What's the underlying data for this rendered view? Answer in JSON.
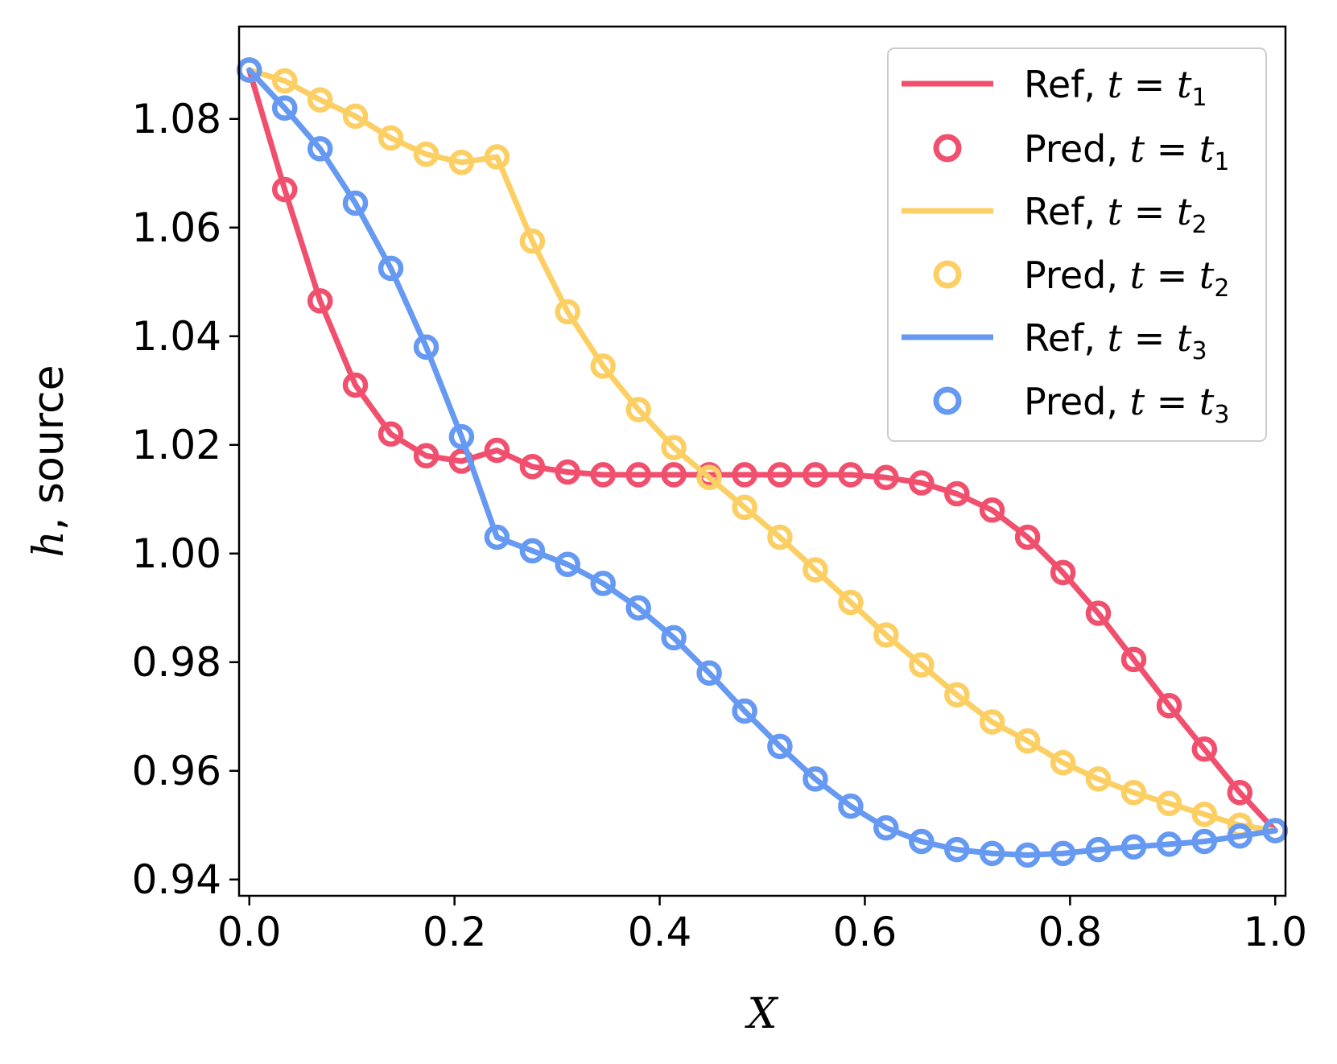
{
  "chart_data": {
    "type": "line",
    "title": "",
    "xlabel": "X",
    "ylabel_var": "h",
    "ylabel_rest": ", source",
    "xlim": [
      -0.01,
      1.01
    ],
    "ylim": [
      0.937,
      1.097
    ],
    "xticks": [
      0.0,
      0.2,
      0.4,
      0.6,
      0.8,
      1.0
    ],
    "xtick_labels": [
      "0.0",
      "0.2",
      "0.4",
      "0.6",
      "0.8",
      "1.0"
    ],
    "yticks": [
      0.94,
      0.96,
      0.98,
      1.0,
      1.02,
      1.04,
      1.06,
      1.08
    ],
    "ytick_labels": [
      "0.94",
      "0.96",
      "0.98",
      "1.00",
      "1.02",
      "1.04",
      "1.06",
      "1.08"
    ],
    "legend_position": "top-right",
    "x": [
      0.0,
      0.0345,
      0.069,
      0.1034,
      0.1379,
      0.1724,
      0.2069,
      0.2414,
      0.2759,
      0.3103,
      0.3448,
      0.3793,
      0.4138,
      0.4483,
      0.4828,
      0.5172,
      0.5517,
      0.5862,
      0.6207,
      0.6552,
      0.6897,
      0.7241,
      0.7586,
      0.7931,
      0.8276,
      0.8621,
      0.8966,
      0.931,
      0.9655,
      1.0
    ],
    "series": [
      {
        "name": "t1",
        "ref_label": "Ref, ",
        "pred_label": "Pred, ",
        "t_sub": "1",
        "color": "#f0506e",
        "values": [
          1.089,
          1.067,
          1.0465,
          1.031,
          1.022,
          1.018,
          1.017,
          1.019,
          1.016,
          1.015,
          1.0145,
          1.0145,
          1.0145,
          1.0145,
          1.0145,
          1.0145,
          1.0145,
          1.0145,
          1.014,
          1.013,
          1.011,
          1.008,
          1.003,
          0.9965,
          0.989,
          0.9805,
          0.972,
          0.964,
          0.956,
          0.949
        ]
      },
      {
        "name": "t2",
        "ref_label": "Ref, ",
        "pred_label": "Pred, ",
        "t_sub": "2",
        "color": "#fbcf63",
        "values": [
          1.089,
          1.087,
          1.0835,
          1.0805,
          1.0765,
          1.0735,
          1.072,
          1.073,
          1.0575,
          1.0445,
          1.0345,
          1.0265,
          1.0195,
          1.014,
          1.0085,
          1.003,
          0.997,
          0.991,
          0.985,
          0.9795,
          0.974,
          0.969,
          0.9655,
          0.9615,
          0.9585,
          0.956,
          0.954,
          0.952,
          0.95,
          0.949
        ]
      },
      {
        "name": "t3",
        "ref_label": "Ref, ",
        "pred_label": "Pred, ",
        "t_sub": "3",
        "color": "#6699f2",
        "values": [
          1.089,
          1.082,
          1.0745,
          1.0645,
          1.0525,
          1.038,
          1.0215,
          1.003,
          1.0005,
          0.998,
          0.9945,
          0.99,
          0.9845,
          0.978,
          0.971,
          0.9645,
          0.9585,
          0.9535,
          0.9495,
          0.947,
          0.9455,
          0.9448,
          0.9445,
          0.9448,
          0.9455,
          0.946,
          0.9465,
          0.947,
          0.948,
          0.949
        ]
      }
    ]
  }
}
